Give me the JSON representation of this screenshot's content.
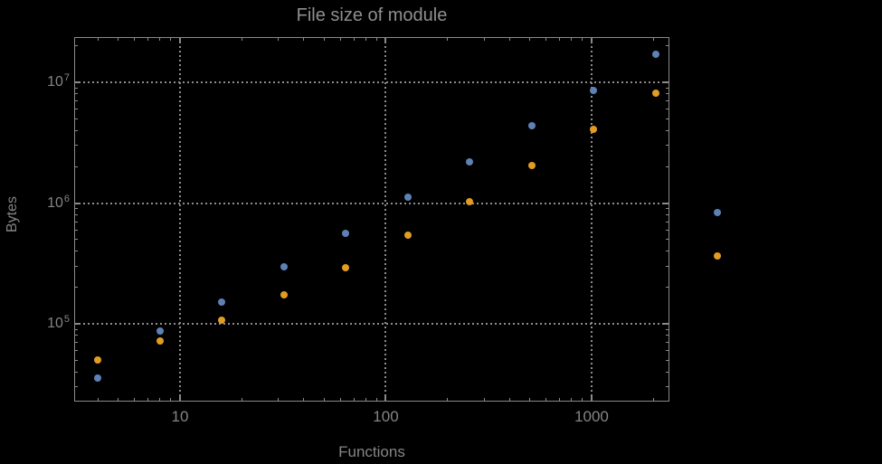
{
  "chart_data": {
    "type": "scatter",
    "title": "File size of module",
    "xlabel": "Functions",
    "ylabel": "Bytes",
    "x_scale": "log10",
    "y_scale": "log10",
    "xlim": [
      3.06,
      2388
    ],
    "ylim": [
      22700,
      23700000
    ],
    "grid": "dotted",
    "legend": "none",
    "x": [
      4,
      8,
      16,
      32,
      64,
      128,
      256,
      512,
      1024,
      2048,
      4096
    ],
    "series": [
      {
        "name": "blue-series",
        "color": "#5e81b5",
        "values": [
          35500,
          87000,
          151000,
          296000,
          561000,
          1120000,
          2190000,
          4370000,
          8560000,
          17100000,
          840000
        ]
      },
      {
        "name": "orange-series",
        "color": "#e19c24",
        "values": [
          50000,
          72000,
          107000,
          174000,
          291000,
          542000,
          1030000,
          2050000,
          4080000,
          8130000,
          363000
        ]
      }
    ],
    "x_ticks": [
      {
        "value": 10,
        "label": "10"
      },
      {
        "value": 100,
        "label": "100"
      },
      {
        "value": 1000,
        "label": "1000"
      }
    ],
    "y_ticks": [
      {
        "value": 100000,
        "mantissa": "10",
        "exponent": "5"
      },
      {
        "value": 1000000,
        "mantissa": "10",
        "exponent": "6"
      },
      {
        "value": 10000000,
        "mantissa": "10",
        "exponent": "7"
      }
    ]
  },
  "colors": {
    "background": "#000000",
    "frame": "#8a8a8a",
    "grid": "#8c8c8c",
    "text": "#858585",
    "title_text": "#8f8f8f",
    "series_blue": "#5e81b5",
    "series_orange": "#e19c24"
  }
}
